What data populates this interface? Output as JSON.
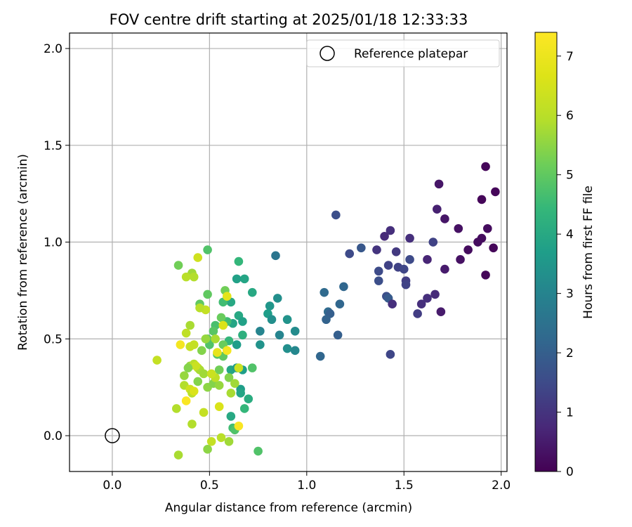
{
  "chart_data": {
    "type": "scatter",
    "title": "FOV centre drift starting at 2025/01/18 12:33:33",
    "xlabel": "Angular distance from reference (arcmin)",
    "ylabel": "Rotation from reference (arcmin)",
    "xlim": [
      -0.22,
      2.03
    ],
    "ylim": [
      -0.185,
      2.08
    ],
    "xticks": [
      "0.0",
      "0.5",
      "1.0",
      "1.5",
      "2.0"
    ],
    "yticks": [
      "0.0",
      "0.5",
      "1.0",
      "1.5",
      "2.0"
    ],
    "grid": true,
    "colormap": "viridis",
    "colorbar": {
      "label": "Hours from first FF file",
      "range": [
        0,
        7.4
      ],
      "ticks": [
        "0",
        "1",
        "2",
        "3",
        "4",
        "5",
        "6",
        "7"
      ]
    },
    "legend": {
      "position": "top-right",
      "entries": [
        "Reference platepar"
      ]
    },
    "reference_point": {
      "x": 0.0,
      "y": 0.0,
      "name": "Reference platepar"
    },
    "points": [
      {
        "x": 1.92,
        "y": 1.39,
        "h": 0.1
      },
      {
        "x": 1.97,
        "y": 1.26,
        "h": 0.1
      },
      {
        "x": 1.9,
        "y": 1.22,
        "h": 0.1
      },
      {
        "x": 1.68,
        "y": 1.3,
        "h": 0.4
      },
      {
        "x": 1.67,
        "y": 1.17,
        "h": 0.6
      },
      {
        "x": 1.71,
        "y": 1.12,
        "h": 0.4
      },
      {
        "x": 1.78,
        "y": 1.07,
        "h": 0.3
      },
      {
        "x": 1.93,
        "y": 1.07,
        "h": 0.2
      },
      {
        "x": 1.9,
        "y": 1.02,
        "h": 0.2
      },
      {
        "x": 1.88,
        "y": 1.0,
        "h": 0.2
      },
      {
        "x": 1.96,
        "y": 0.97,
        "h": 0.1
      },
      {
        "x": 1.83,
        "y": 0.96,
        "h": 0.2
      },
      {
        "x": 1.79,
        "y": 0.91,
        "h": 0.3
      },
      {
        "x": 1.71,
        "y": 0.86,
        "h": 0.5
      },
      {
        "x": 1.92,
        "y": 0.83,
        "h": 0.1
      },
      {
        "x": 1.66,
        "y": 0.73,
        "h": 0.8
      },
      {
        "x": 1.62,
        "y": 0.71,
        "h": 0.9
      },
      {
        "x": 1.69,
        "y": 0.64,
        "h": 0.5
      },
      {
        "x": 1.59,
        "y": 0.68,
        "h": 0.9
      },
      {
        "x": 1.57,
        "y": 0.63,
        "h": 1.2
      },
      {
        "x": 1.65,
        "y": 1.0,
        "h": 1.3
      },
      {
        "x": 1.62,
        "y": 0.91,
        "h": 0.7
      },
      {
        "x": 1.53,
        "y": 1.02,
        "h": 0.9
      },
      {
        "x": 1.53,
        "y": 0.91,
        "h": 1.5
      },
      {
        "x": 1.46,
        "y": 0.95,
        "h": 1.1
      },
      {
        "x": 1.47,
        "y": 0.87,
        "h": 1.3
      },
      {
        "x": 1.5,
        "y": 0.86,
        "h": 1.4
      },
      {
        "x": 1.51,
        "y": 0.8,
        "h": 1.2
      },
      {
        "x": 1.51,
        "y": 0.78,
        "h": 1.3
      },
      {
        "x": 1.43,
        "y": 1.06,
        "h": 0.9
      },
      {
        "x": 1.4,
        "y": 1.03,
        "h": 0.8
      },
      {
        "x": 1.36,
        "y": 0.96,
        "h": 1.0
      },
      {
        "x": 1.42,
        "y": 0.88,
        "h": 1.3
      },
      {
        "x": 1.37,
        "y": 0.85,
        "h": 1.5
      },
      {
        "x": 1.37,
        "y": 0.8,
        "h": 1.6
      },
      {
        "x": 1.41,
        "y": 0.72,
        "h": 1.6
      },
      {
        "x": 1.42,
        "y": 0.71,
        "h": 1.9
      },
      {
        "x": 1.44,
        "y": 0.68,
        "h": 0.9
      },
      {
        "x": 1.43,
        "y": 0.42,
        "h": 1.4
      },
      {
        "x": 1.15,
        "y": 1.14,
        "h": 1.6
      },
      {
        "x": 1.22,
        "y": 0.94,
        "h": 1.5
      },
      {
        "x": 1.28,
        "y": 0.97,
        "h": 1.8
      },
      {
        "x": 1.19,
        "y": 0.77,
        "h": 2.2
      },
      {
        "x": 1.09,
        "y": 0.74,
        "h": 2.3
      },
      {
        "x": 1.11,
        "y": 0.64,
        "h": 2.3
      },
      {
        "x": 1.12,
        "y": 0.63,
        "h": 2.0
      },
      {
        "x": 1.17,
        "y": 0.68,
        "h": 2.2
      },
      {
        "x": 1.1,
        "y": 0.6,
        "h": 2.1
      },
      {
        "x": 1.16,
        "y": 0.52,
        "h": 2.0
      },
      {
        "x": 1.07,
        "y": 0.41,
        "h": 2.2
      },
      {
        "x": 0.84,
        "y": 0.93,
        "h": 2.6
      },
      {
        "x": 0.85,
        "y": 0.71,
        "h": 3.3
      },
      {
        "x": 0.81,
        "y": 0.67,
        "h": 3.5
      },
      {
        "x": 0.8,
        "y": 0.63,
        "h": 3.7
      },
      {
        "x": 0.82,
        "y": 0.6,
        "h": 3.3
      },
      {
        "x": 0.9,
        "y": 0.6,
        "h": 3.4
      },
      {
        "x": 0.94,
        "y": 0.54,
        "h": 3.2
      },
      {
        "x": 0.86,
        "y": 0.52,
        "h": 3.0
      },
      {
        "x": 0.9,
        "y": 0.45,
        "h": 3.3
      },
      {
        "x": 0.94,
        "y": 0.44,
        "h": 3.1
      },
      {
        "x": 0.76,
        "y": 0.54,
        "h": 3.0
      },
      {
        "x": 0.76,
        "y": 0.47,
        "h": 3.4
      },
      {
        "x": 0.72,
        "y": 0.74,
        "h": 4.0
      },
      {
        "x": 0.68,
        "y": 0.81,
        "h": 3.9
      },
      {
        "x": 0.64,
        "y": 0.81,
        "h": 3.8
      },
      {
        "x": 0.65,
        "y": 0.9,
        "h": 4.4
      },
      {
        "x": 0.61,
        "y": 0.69,
        "h": 4.0
      },
      {
        "x": 0.57,
        "y": 0.69,
        "h": 4.6
      },
      {
        "x": 0.58,
        "y": 0.75,
        "h": 5.2
      },
      {
        "x": 0.65,
        "y": 0.62,
        "h": 4.0
      },
      {
        "x": 0.67,
        "y": 0.59,
        "h": 3.8
      },
      {
        "x": 0.62,
        "y": 0.58,
        "h": 3.9
      },
      {
        "x": 0.59,
        "y": 0.59,
        "h": 4.6
      },
      {
        "x": 0.56,
        "y": 0.61,
        "h": 5.1
      },
      {
        "x": 0.67,
        "y": 0.52,
        "h": 4.2
      },
      {
        "x": 0.64,
        "y": 0.47,
        "h": 3.7
      },
      {
        "x": 0.6,
        "y": 0.49,
        "h": 4.4
      },
      {
        "x": 0.57,
        "y": 0.47,
        "h": 5.1
      },
      {
        "x": 0.53,
        "y": 0.57,
        "h": 4.7
      },
      {
        "x": 0.52,
        "y": 0.54,
        "h": 4.9
      },
      {
        "x": 0.49,
        "y": 0.5,
        "h": 5.0
      },
      {
        "x": 0.5,
        "y": 0.47,
        "h": 4.8
      },
      {
        "x": 0.54,
        "y": 0.42,
        "h": 4.9
      },
      {
        "x": 0.57,
        "y": 0.41,
        "h": 5.0
      },
      {
        "x": 0.61,
        "y": 0.34,
        "h": 3.9
      },
      {
        "x": 0.64,
        "y": 0.35,
        "h": 3.6
      },
      {
        "x": 0.67,
        "y": 0.34,
        "h": 3.7
      },
      {
        "x": 0.72,
        "y": 0.35,
        "h": 4.8
      },
      {
        "x": 0.66,
        "y": 0.24,
        "h": 3.7
      },
      {
        "x": 0.66,
        "y": 0.22,
        "h": 3.9
      },
      {
        "x": 0.7,
        "y": 0.19,
        "h": 4.1
      },
      {
        "x": 0.68,
        "y": 0.14,
        "h": 4.4
      },
      {
        "x": 0.61,
        "y": 0.1,
        "h": 4.0
      },
      {
        "x": 0.62,
        "y": 0.04,
        "h": 4.6
      },
      {
        "x": 0.63,
        "y": 0.03,
        "h": 4.8
      },
      {
        "x": 0.75,
        "y": -0.08,
        "h": 4.8
      },
      {
        "x": 0.49,
        "y": 0.96,
        "h": 4.8
      },
      {
        "x": 0.49,
        "y": 0.73,
        "h": 5.0
      },
      {
        "x": 0.45,
        "y": 0.68,
        "h": 5.0
      },
      {
        "x": 0.48,
        "y": 0.65,
        "h": 6.2
      },
      {
        "x": 0.45,
        "y": 0.66,
        "h": 6.0
      },
      {
        "x": 0.4,
        "y": 0.57,
        "h": 5.8
      },
      {
        "x": 0.38,
        "y": 0.53,
        "h": 6.1
      },
      {
        "x": 0.41,
        "y": 0.84,
        "h": 5.7
      },
      {
        "x": 0.42,
        "y": 0.82,
        "h": 5.9
      },
      {
        "x": 0.38,
        "y": 0.82,
        "h": 6.0
      },
      {
        "x": 0.34,
        "y": 0.88,
        "h": 5.2
      },
      {
        "x": 0.44,
        "y": 0.92,
        "h": 6.4
      },
      {
        "x": 0.46,
        "y": 0.44,
        "h": 5.4
      },
      {
        "x": 0.42,
        "y": 0.47,
        "h": 6.2
      },
      {
        "x": 0.4,
        "y": 0.46,
        "h": 6.2
      },
      {
        "x": 0.35,
        "y": 0.47,
        "h": 7.2
      },
      {
        "x": 0.48,
        "y": 0.5,
        "h": 5.6
      },
      {
        "x": 0.53,
        "y": 0.5,
        "h": 5.8
      },
      {
        "x": 0.54,
        "y": 0.43,
        "h": 6.9
      },
      {
        "x": 0.57,
        "y": 0.57,
        "h": 6.6
      },
      {
        "x": 0.59,
        "y": 0.72,
        "h": 6.8
      },
      {
        "x": 0.59,
        "y": 0.44,
        "h": 7.2
      },
      {
        "x": 0.4,
        "y": 0.36,
        "h": 5.6
      },
      {
        "x": 0.42,
        "y": 0.37,
        "h": 6.0
      },
      {
        "x": 0.44,
        "y": 0.35,
        "h": 6.1
      },
      {
        "x": 0.45,
        "y": 0.34,
        "h": 5.8
      },
      {
        "x": 0.43,
        "y": 0.36,
        "h": 6.3
      },
      {
        "x": 0.39,
        "y": 0.35,
        "h": 5.4
      },
      {
        "x": 0.37,
        "y": 0.31,
        "h": 5.6
      },
      {
        "x": 0.44,
        "y": 0.28,
        "h": 5.4
      },
      {
        "x": 0.47,
        "y": 0.32,
        "h": 5.7
      },
      {
        "x": 0.49,
        "y": 0.25,
        "h": 5.5
      },
      {
        "x": 0.52,
        "y": 0.27,
        "h": 5.4
      },
      {
        "x": 0.55,
        "y": 0.34,
        "h": 5.2
      },
      {
        "x": 0.55,
        "y": 0.26,
        "h": 5.6
      },
      {
        "x": 0.53,
        "y": 0.3,
        "h": 6.1
      },
      {
        "x": 0.51,
        "y": 0.32,
        "h": 6.3
      },
      {
        "x": 0.6,
        "y": 0.3,
        "h": 5.4
      },
      {
        "x": 0.63,
        "y": 0.27,
        "h": 5.7
      },
      {
        "x": 0.65,
        "y": 0.35,
        "h": 6.3
      },
      {
        "x": 0.37,
        "y": 0.26,
        "h": 5.9
      },
      {
        "x": 0.4,
        "y": 0.24,
        "h": 6.4
      },
      {
        "x": 0.41,
        "y": 0.22,
        "h": 6.0
      },
      {
        "x": 0.42,
        "y": 0.23,
        "h": 6.6
      },
      {
        "x": 0.38,
        "y": 0.18,
        "h": 7.3
      },
      {
        "x": 0.33,
        "y": 0.14,
        "h": 5.9
      },
      {
        "x": 0.47,
        "y": 0.12,
        "h": 6.2
      },
      {
        "x": 0.55,
        "y": 0.15,
        "h": 6.6
      },
      {
        "x": 0.61,
        "y": 0.22,
        "h": 5.8
      },
      {
        "x": 0.41,
        "y": 0.06,
        "h": 5.9
      },
      {
        "x": 0.65,
        "y": 0.05,
        "h": 7.3
      },
      {
        "x": 0.56,
        "y": -0.01,
        "h": 6.0
      },
      {
        "x": 0.51,
        "y": -0.03,
        "h": 6.2
      },
      {
        "x": 0.6,
        "y": -0.03,
        "h": 5.7
      },
      {
        "x": 0.49,
        "y": -0.07,
        "h": 5.5
      },
      {
        "x": 0.34,
        "y": -0.1,
        "h": 5.8
      },
      {
        "x": 0.23,
        "y": 0.39,
        "h": 6.2
      }
    ]
  }
}
